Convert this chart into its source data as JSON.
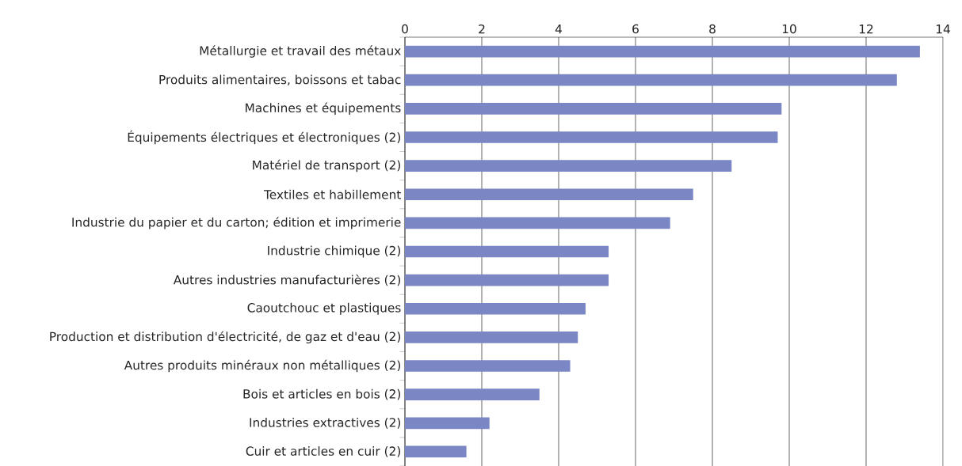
{
  "chart_data": {
    "type": "bar",
    "orientation": "horizontal",
    "categories": [
      "Métallurgie et travail des métaux",
      "Produits alimentaires, boissons et tabac",
      "Machines et équipements",
      "Équipements électriques et électroniques (2)",
      "Matériel de transport (2)",
      "Textiles et habillement",
      "Industrie du papier et du carton; édition et imprimerie",
      "Industrie chimique (2)",
      "Autres industries manufacturières (2)",
      "Caoutchouc et plastiques",
      "Production et distribution d'électricité, de gaz et d'eau (2)",
      "Autres produits minéraux non métalliques (2)",
      "Bois et articles en bois (2)",
      "Industries extractives (2)",
      "Cuir et articles en cuir (2)"
    ],
    "values": [
      13.4,
      12.8,
      9.8,
      9.7,
      8.5,
      7.5,
      6.9,
      5.3,
      5.3,
      4.7,
      4.5,
      4.3,
      3.5,
      2.2,
      1.6
    ],
    "color": "#7b87c4",
    "xlim": [
      0,
      14
    ],
    "xticks": [
      0,
      2,
      4,
      6,
      8,
      10,
      12,
      14
    ],
    "grid": "x"
  }
}
